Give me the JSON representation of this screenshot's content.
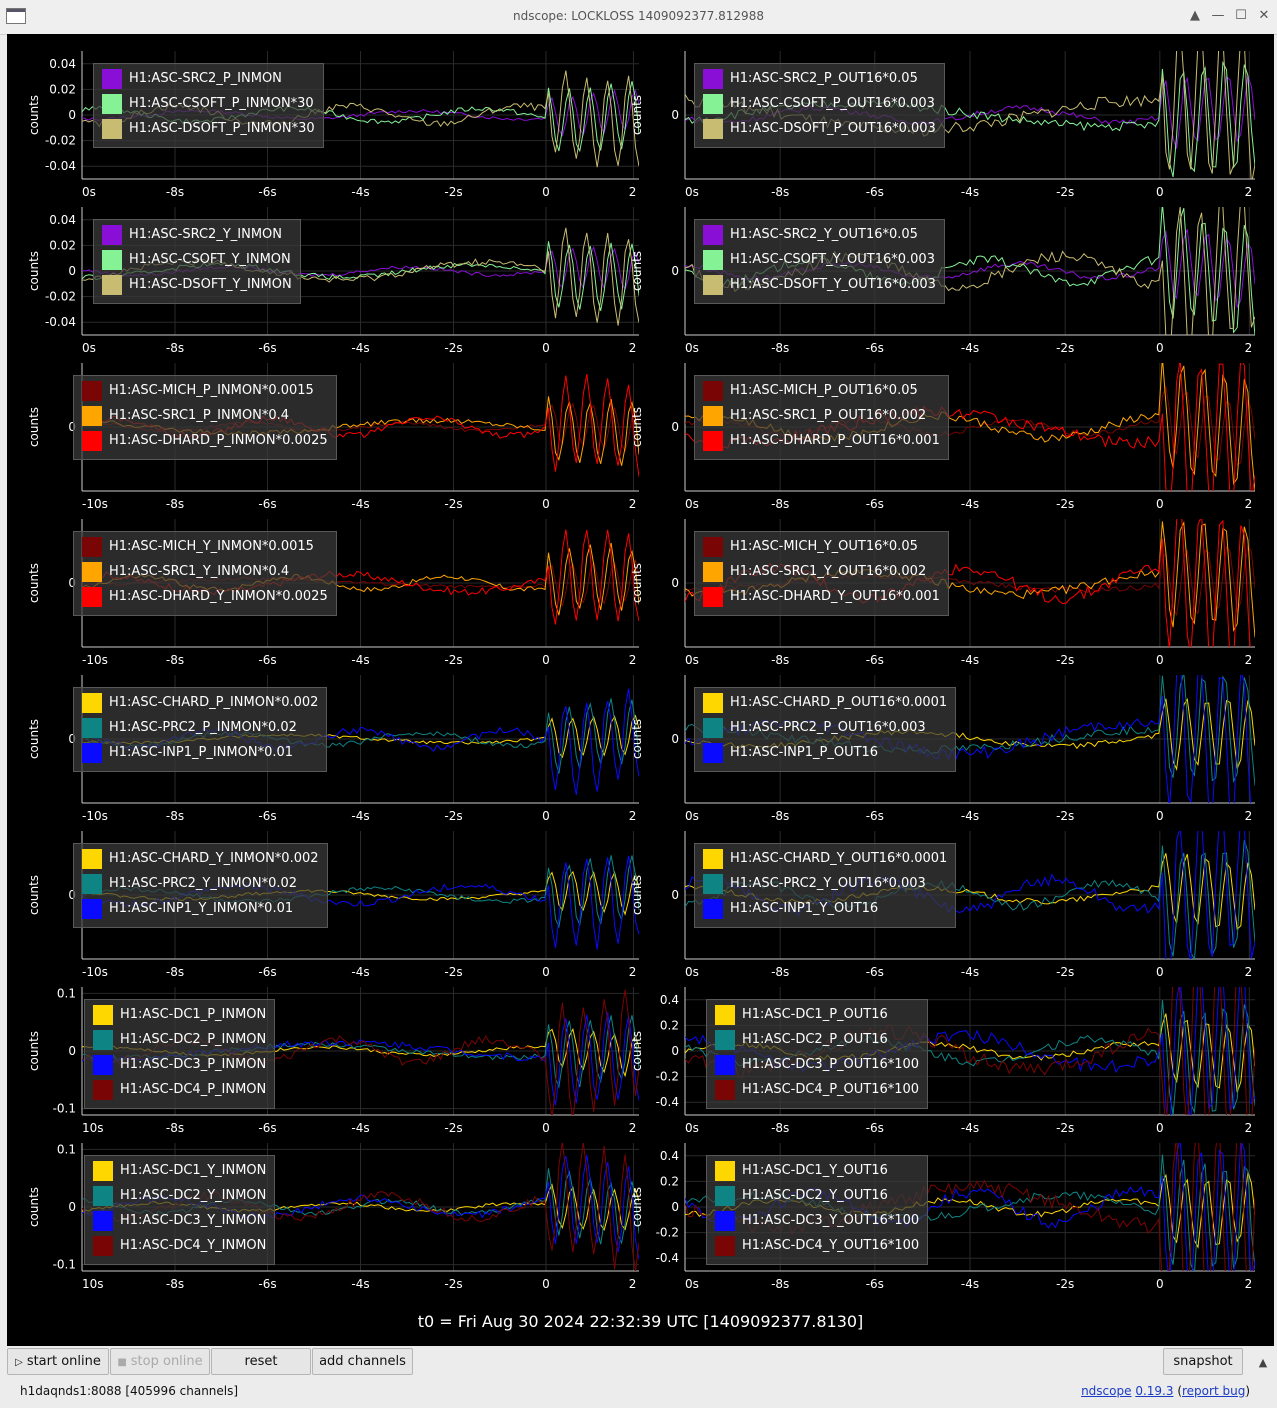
{
  "window": {
    "title": "ndscope: LOCKLOSS 1409092377.812988",
    "controls": [
      "▲",
      "—",
      "☐",
      "✕"
    ]
  },
  "y_axis_label": "counts",
  "plots": [
    {
      "id": "p1",
      "yticks": [
        "0.04",
        "0.02",
        "0",
        "-0.02",
        "-0.04"
      ],
      "xticks": [
        "0s",
        "-8s",
        "-6s",
        "-4s",
        "-2s",
        "0",
        "2"
      ],
      "legend": [
        {
          "label": "H1:ASC-SRC2_P_INMON",
          "color": "#8a0fd6"
        },
        {
          "label": "H1:ASC-CSOFT_P_INMON*30",
          "color": "#86f296"
        },
        {
          "label": "H1:ASC-DSOFT_P_INMON*30",
          "color": "#c8bc72"
        }
      ]
    },
    {
      "id": "p2",
      "yticks": [
        "0"
      ],
      "xticks": [
        "0s",
        "-8s",
        "-6s",
        "-4s",
        "-2s",
        "0",
        "2"
      ],
      "legend": [
        {
          "label": "H1:ASC-SRC2_P_OUT16*0.05",
          "color": "#8a0fd6"
        },
        {
          "label": "H1:ASC-CSOFT_P_OUT16*0.003",
          "color": "#86f296"
        },
        {
          "label": "H1:ASC-DSOFT_P_OUT16*0.003",
          "color": "#c8bc72"
        }
      ]
    },
    {
      "id": "p3",
      "yticks": [
        "0.04",
        "0.02",
        "0",
        "-0.02",
        "-0.04"
      ],
      "xticks": [
        "0s",
        "-8s",
        "-6s",
        "-4s",
        "-2s",
        "0",
        "2"
      ],
      "legend": [
        {
          "label": "H1:ASC-SRC2_Y_INMON",
          "color": "#8a0fd6"
        },
        {
          "label": "H1:ASC-CSOFT_Y_INMON",
          "color": "#86f296"
        },
        {
          "label": "H1:ASC-DSOFT_Y_INMON",
          "color": "#c8bc72"
        }
      ]
    },
    {
      "id": "p4",
      "yticks": [
        "0"
      ],
      "xticks": [
        "0s",
        "-8s",
        "-6s",
        "-4s",
        "-2s",
        "0",
        "2"
      ],
      "legend": [
        {
          "label": "H1:ASC-SRC2_Y_OUT16*0.05",
          "color": "#8a0fd6"
        },
        {
          "label": "H1:ASC-CSOFT_Y_OUT16*0.003",
          "color": "#86f296"
        },
        {
          "label": "H1:ASC-DSOFT_Y_OUT16*0.003",
          "color": "#c8bc72"
        }
      ]
    },
    {
      "id": "p5",
      "yticks": [
        "0"
      ],
      "xticks": [
        "-10s",
        "-8s",
        "-6s",
        "-4s",
        "-2s",
        "0",
        "2"
      ],
      "legend": [
        {
          "label": "H1:ASC-MICH_P_INMON*0.0015",
          "color": "#7a0505"
        },
        {
          "label": "H1:ASC-SRC1_P_INMON*0.4",
          "color": "#ffa500"
        },
        {
          "label": "H1:ASC-DHARD_P_INMON*0.0025",
          "color": "#ff0000"
        }
      ]
    },
    {
      "id": "p6",
      "yticks": [
        "0"
      ],
      "xticks": [
        "0s",
        "-8s",
        "-6s",
        "-4s",
        "-2s",
        "0",
        "2"
      ],
      "legend": [
        {
          "label": "H1:ASC-MICH_P_OUT16*0.05",
          "color": "#7a0505"
        },
        {
          "label": "H1:ASC-SRC1_P_OUT16*0.002",
          "color": "#ffa500"
        },
        {
          "label": "H1:ASC-DHARD_P_OUT16*0.001",
          "color": "#ff0000"
        }
      ]
    },
    {
      "id": "p7",
      "yticks": [
        "0"
      ],
      "xticks": [
        "-10s",
        "-8s",
        "-6s",
        "-4s",
        "-2s",
        "0",
        "2"
      ],
      "legend": [
        {
          "label": "H1:ASC-MICH_Y_INMON*0.0015",
          "color": "#7a0505"
        },
        {
          "label": "H1:ASC-SRC1_Y_INMON*0.4",
          "color": "#ffa500"
        },
        {
          "label": "H1:ASC-DHARD_Y_INMON*0.0025",
          "color": "#ff0000"
        }
      ]
    },
    {
      "id": "p8",
      "yticks": [
        "0"
      ],
      "xticks": [
        "0s",
        "-8s",
        "-6s",
        "-4s",
        "-2s",
        "0",
        "2"
      ],
      "legend": [
        {
          "label": "H1:ASC-MICH_Y_OUT16*0.05",
          "color": "#7a0505"
        },
        {
          "label": "H1:ASC-SRC1_Y_OUT16*0.002",
          "color": "#ffa500"
        },
        {
          "label": "H1:ASC-DHARD_Y_OUT16*0.001",
          "color": "#ff0000"
        }
      ]
    },
    {
      "id": "p9",
      "yticks": [
        "0"
      ],
      "xticks": [
        "-10s",
        "-8s",
        "-6s",
        "-4s",
        "-2s",
        "0",
        "2"
      ],
      "legend": [
        {
          "label": "H1:ASC-CHARD_P_INMON*0.002",
          "color": "#ffd700"
        },
        {
          "label": "H1:ASC-PRC2_P_INMON*0.02",
          "color": "#0e8484"
        },
        {
          "label": "H1:ASC-INP1_P_INMON*0.01",
          "color": "#0a0aff"
        }
      ]
    },
    {
      "id": "p10",
      "yticks": [
        "0"
      ],
      "xticks": [
        "0s",
        "-8s",
        "-6s",
        "-4s",
        "-2s",
        "0",
        "2"
      ],
      "legend": [
        {
          "label": "H1:ASC-CHARD_P_OUT16*0.0001",
          "color": "#ffd700"
        },
        {
          "label": "H1:ASC-PRC2_P_OUT16*0.003",
          "color": "#0e8484"
        },
        {
          "label": "H1:ASC-INP1_P_OUT16",
          "color": "#0a0aff"
        }
      ]
    },
    {
      "id": "p11",
      "yticks": [
        "0"
      ],
      "xticks": [
        "-10s",
        "-8s",
        "-6s",
        "-4s",
        "-2s",
        "0",
        "2"
      ],
      "legend": [
        {
          "label": "H1:ASC-CHARD_Y_INMON*0.002",
          "color": "#ffd700"
        },
        {
          "label": "H1:ASC-PRC2_Y_INMON*0.02",
          "color": "#0e8484"
        },
        {
          "label": "H1:ASC-INP1_Y_INMON*0.01",
          "color": "#0a0aff"
        }
      ]
    },
    {
      "id": "p12",
      "yticks": [
        "0"
      ],
      "xticks": [
        "0s",
        "-8s",
        "-6s",
        "-4s",
        "-2s",
        "0",
        "2"
      ],
      "legend": [
        {
          "label": "H1:ASC-CHARD_Y_OUT16*0.0001",
          "color": "#ffd700"
        },
        {
          "label": "H1:ASC-PRC2_Y_OUT16*0.003",
          "color": "#0e8484"
        },
        {
          "label": "H1:ASC-INP1_Y_OUT16",
          "color": "#0a0aff"
        }
      ]
    },
    {
      "id": "p13",
      "yticks": [
        "0.1",
        "0",
        "-0.1"
      ],
      "xticks": [
        "10s",
        "-8s",
        "-6s",
        "-4s",
        "-2s",
        "0",
        "2"
      ],
      "legend": [
        {
          "label": "H1:ASC-DC1_P_INMON",
          "color": "#ffd700"
        },
        {
          "label": "H1:ASC-DC2_P_INMON",
          "color": "#0e8484"
        },
        {
          "label": "H1:ASC-DC3_P_INMON",
          "color": "#0a0aff"
        },
        {
          "label": "H1:ASC-DC4_P_INMON",
          "color": "#7a0505"
        }
      ]
    },
    {
      "id": "p14",
      "yticks": [
        "0.4",
        "0.2",
        "0",
        "-0.2",
        "-0.4"
      ],
      "xticks": [
        "0s",
        "-8s",
        "-6s",
        "-4s",
        "-2s",
        "0",
        "2"
      ],
      "legend": [
        {
          "label": "H1:ASC-DC1_P_OUT16",
          "color": "#ffd700"
        },
        {
          "label": "H1:ASC-DC2_P_OUT16",
          "color": "#0e8484"
        },
        {
          "label": "H1:ASC-DC3_P_OUT16*100",
          "color": "#0a0aff"
        },
        {
          "label": "H1:ASC-DC4_P_OUT16*100",
          "color": "#7a0505"
        }
      ]
    },
    {
      "id": "p15",
      "yticks": [
        "0.1",
        "0",
        "-0.1"
      ],
      "xticks": [
        "10s",
        "-8s",
        "-6s",
        "-4s",
        "-2s",
        "0",
        "2"
      ],
      "legend": [
        {
          "label": "H1:ASC-DC1_Y_INMON",
          "color": "#ffd700"
        },
        {
          "label": "H1:ASC-DC2_Y_INMON",
          "color": "#0e8484"
        },
        {
          "label": "H1:ASC-DC3_Y_INMON",
          "color": "#0a0aff"
        },
        {
          "label": "H1:ASC-DC4_Y_INMON",
          "color": "#7a0505"
        }
      ]
    },
    {
      "id": "p16",
      "yticks": [
        "0.4",
        "0.2",
        "0",
        "-0.2",
        "-0.4"
      ],
      "xticks": [
        "0s",
        "-8s",
        "-6s",
        "-4s",
        "-2s",
        "0",
        "2"
      ],
      "legend": [
        {
          "label": "H1:ASC-DC1_Y_OUT16",
          "color": "#ffd700"
        },
        {
          "label": "H1:ASC-DC2_Y_OUT16",
          "color": "#0e8484"
        },
        {
          "label": "H1:ASC-DC3_Y_OUT16*100",
          "color": "#0a0aff"
        },
        {
          "label": "H1:ASC-DC4_Y_OUT16*100",
          "color": "#7a0505"
        }
      ]
    }
  ],
  "t0_label": "t0 = Fri Aug 30 2024 22:32:39 UTC [1409092377.8130]",
  "toolbar": {
    "start_online": "start online",
    "stop_online": "stop online",
    "reset": "reset",
    "add_channels": "add channels",
    "snapshot": "snapshot"
  },
  "status": {
    "server": "h1daqnds1:8088  [405996 channels]",
    "app_name": "ndscope",
    "version": "0.19.3",
    "report_bug": "report bug"
  }
}
